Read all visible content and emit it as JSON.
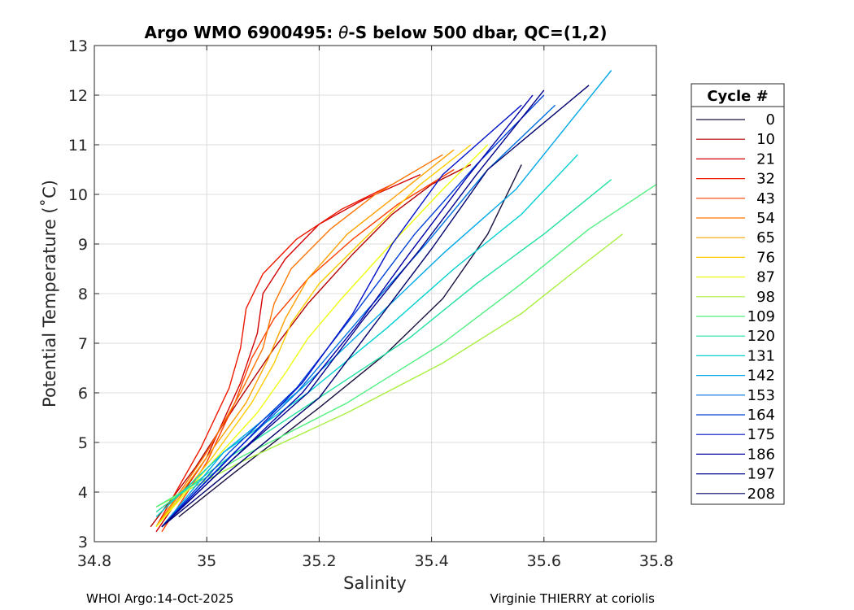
{
  "chart_data": {
    "type": "line",
    "title_prefix": "Argo WMO 6900495: ",
    "title_symbol": "θ",
    "title_suffix": "-S below 500 dbar,  QC=(1,2)",
    "xlabel": "Salinity",
    "ylabel": "Potential Temperature (˚C)",
    "xlim": [
      34.8,
      35.8
    ],
    "ylim": [
      3,
      13
    ],
    "xticks": [
      "34.8",
      "35",
      "35.2",
      "35.4",
      "35.6",
      "35.8"
    ],
    "yticks": [
      "3",
      "4",
      "5",
      "6",
      "7",
      "8",
      "9",
      "10",
      "11",
      "12",
      "13"
    ],
    "grid": true,
    "legend_title": "Cycle #",
    "legend_position": "outside-right",
    "colormap": "jet",
    "series": [
      {
        "name": "0",
        "color": "#1a1040",
        "salinity": [
          34.95,
          35.05,
          35.2,
          35.32,
          35.42,
          35.5,
          35.56
        ],
        "theta": [
          3.5,
          4.4,
          5.7,
          6.8,
          7.9,
          9.2,
          10.6
        ]
      },
      {
        "name": "10",
        "color": "#b40000",
        "salinity": [
          34.9,
          34.98,
          35.06,
          35.12,
          35.18,
          35.26,
          35.33,
          35.4,
          35.47
        ],
        "theta": [
          3.3,
          4.5,
          5.9,
          6.9,
          7.8,
          8.8,
          9.6,
          10.2,
          10.6
        ]
      },
      {
        "name": "21",
        "color": "#d40000",
        "salinity": [
          34.91,
          35.0,
          35.06,
          35.09,
          35.1,
          35.14,
          35.2,
          35.28,
          35.38
        ],
        "theta": [
          3.2,
          4.7,
          6.2,
          7.2,
          8.0,
          8.7,
          9.4,
          9.9,
          10.4
        ]
      },
      {
        "name": "32",
        "color": "#ee1800",
        "salinity": [
          34.91,
          34.99,
          35.04,
          35.06,
          35.07,
          35.1,
          35.16,
          35.24,
          35.33
        ],
        "theta": [
          3.3,
          4.9,
          6.1,
          6.9,
          7.7,
          8.4,
          9.1,
          9.7,
          10.2
        ]
      },
      {
        "name": "43",
        "color": "#ff4000",
        "salinity": [
          34.92,
          35.0,
          35.05,
          35.08,
          35.12,
          35.18,
          35.26,
          35.34,
          35.44
        ],
        "theta": [
          3.2,
          4.6,
          5.8,
          6.7,
          7.5,
          8.3,
          9.1,
          9.8,
          10.5
        ]
      },
      {
        "name": "54",
        "color": "#ff7400",
        "salinity": [
          34.91,
          35.0,
          35.06,
          35.1,
          35.12,
          35.15,
          35.22,
          35.3,
          35.42
        ],
        "theta": [
          3.3,
          4.8,
          6.0,
          6.9,
          7.8,
          8.5,
          9.3,
          10.0,
          10.8
        ]
      },
      {
        "name": "65",
        "color": "#ffa000",
        "salinity": [
          34.91,
          35.0,
          35.07,
          35.11,
          35.14,
          35.18,
          35.25,
          35.34,
          35.44
        ],
        "theta": [
          3.3,
          4.7,
          5.8,
          6.7,
          7.5,
          8.3,
          9.2,
          10.0,
          10.9
        ]
      },
      {
        "name": "76",
        "color": "#ffcc00",
        "salinity": [
          34.91,
          35.01,
          35.08,
          35.12,
          35.15,
          35.2,
          35.28,
          35.38,
          35.47
        ],
        "theta": [
          3.3,
          4.7,
          5.8,
          6.6,
          7.4,
          8.2,
          9.1,
          10.2,
          11.0
        ]
      },
      {
        "name": "87",
        "color": "#eeff10",
        "salinity": [
          34.91,
          35.01,
          35.09,
          35.14,
          35.18,
          35.24,
          35.32,
          35.42,
          35.5
        ],
        "theta": [
          3.3,
          4.6,
          5.6,
          6.4,
          7.1,
          7.9,
          8.9,
          10.1,
          11.0
        ]
      },
      {
        "name": "98",
        "color": "#a8f040",
        "salinity": [
          34.91,
          35.06,
          35.25,
          35.42,
          35.56,
          35.66,
          35.74
        ],
        "theta": [
          3.7,
          4.6,
          5.6,
          6.6,
          7.6,
          8.5,
          9.2
        ]
      },
      {
        "name": "109",
        "color": "#50f080",
        "salinity": [
          34.91,
          35.06,
          35.25,
          35.42,
          35.56,
          35.68,
          35.8
        ],
        "theta": [
          3.7,
          4.7,
          5.8,
          7.0,
          8.2,
          9.3,
          10.2
        ]
      },
      {
        "name": "120",
        "color": "#20e0a0",
        "salinity": [
          34.91,
          35.04,
          35.2,
          35.36,
          35.48,
          35.6,
          35.72
        ],
        "theta": [
          3.6,
          4.7,
          5.9,
          7.1,
          8.2,
          9.2,
          10.3
        ]
      },
      {
        "name": "131",
        "color": "#00d0d0",
        "salinity": [
          34.91,
          35.03,
          35.18,
          35.32,
          35.44,
          35.56,
          35.66
        ],
        "theta": [
          3.5,
          4.8,
          6.0,
          7.3,
          8.5,
          9.6,
          10.8
        ]
      },
      {
        "name": "142",
        "color": "#00a8e8",
        "salinity": [
          34.92,
          35.03,
          35.17,
          35.3,
          35.42,
          35.55,
          35.72
        ],
        "theta": [
          3.3,
          4.8,
          6.1,
          7.5,
          8.8,
          10.1,
          12.5
        ]
      },
      {
        "name": "153",
        "color": "#0070e0",
        "salinity": [
          34.92,
          35.04,
          35.16,
          35.28,
          35.39,
          35.5,
          35.62
        ],
        "theta": [
          3.3,
          4.7,
          6.0,
          7.6,
          9.0,
          10.5,
          11.8
        ]
      },
      {
        "name": "164",
        "color": "#0040d8",
        "salinity": [
          34.92,
          35.04,
          35.16,
          35.27,
          35.37,
          35.48,
          35.6
        ],
        "theta": [
          3.3,
          4.8,
          6.1,
          7.7,
          9.2,
          10.6,
          12.0
        ]
      },
      {
        "name": "175",
        "color": "#0010c8",
        "salinity": [
          34.92,
          35.05,
          35.17,
          35.26,
          35.33,
          35.42,
          35.56
        ],
        "theta": [
          3.3,
          4.8,
          6.2,
          7.6,
          9.0,
          10.4,
          11.8
        ]
      },
      {
        "name": "186",
        "color": "#0000a8",
        "salinity": [
          34.92,
          35.05,
          35.17,
          35.27,
          35.36,
          35.46,
          35.58
        ],
        "theta": [
          3.3,
          4.7,
          6.0,
          7.4,
          8.8,
          10.3,
          12.0
        ]
      },
      {
        "name": "197",
        "color": "#00008a",
        "salinity": [
          34.92,
          35.05,
          35.18,
          35.28,
          35.38,
          35.48,
          35.6
        ],
        "theta": [
          3.3,
          4.7,
          6.0,
          7.5,
          8.9,
          10.4,
          12.1
        ]
      },
      {
        "name": "208",
        "color": "#00006c",
        "salinity": [
          34.92,
          35.06,
          35.2,
          35.3,
          35.4,
          35.5,
          35.68
        ],
        "theta": [
          3.3,
          4.6,
          5.9,
          7.4,
          8.9,
          10.5,
          12.2
        ]
      }
    ]
  },
  "footer": {
    "left": "WHOI Argo:14-Oct-2025",
    "right": "Virginie THIERRY at coriolis"
  }
}
